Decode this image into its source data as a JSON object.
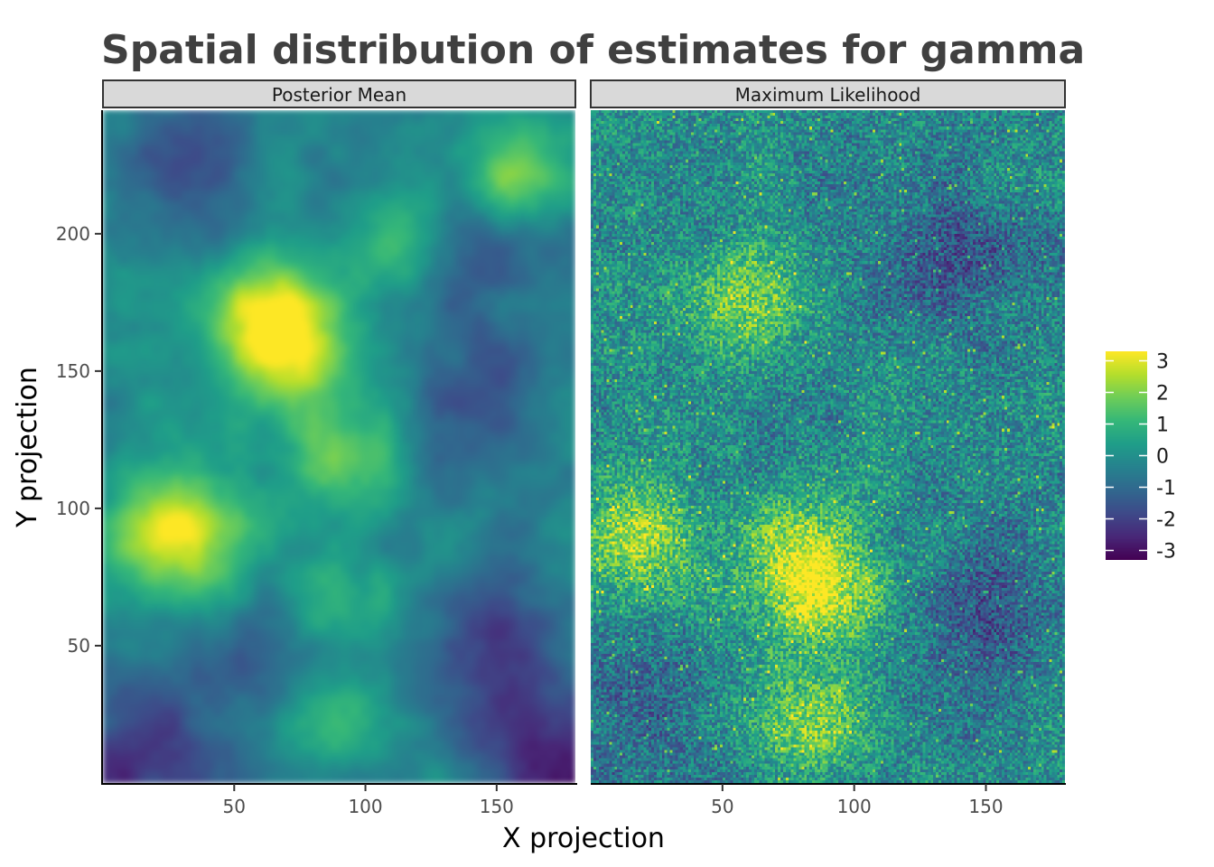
{
  "chart_data": {
    "type": "heatmap",
    "title": "Spatial distribution of estimates for gamma",
    "xlabel": "X projection",
    "ylabel": "Y projection",
    "xlim": [
      0,
      180
    ],
    "ylim": [
      0,
      245
    ],
    "x_ticks": [
      50,
      100,
      150
    ],
    "y_ticks": [
      50,
      100,
      150,
      200
    ],
    "grid": false,
    "legend": {
      "placement": "right",
      "colormap": "viridis",
      "range": [
        -3.3,
        3.3
      ],
      "ticks": [
        3,
        2,
        1,
        0,
        -1,
        -2,
        -3
      ]
    },
    "panels": [
      {
        "name": "Posterior Mean",
        "description_values": "smooth field of estimates",
        "hotspots": [
          {
            "x": 72,
            "y": 158,
            "value": 2.6
          },
          {
            "x": 62,
            "y": 170,
            "value": 2.2
          },
          {
            "x": 20,
            "y": 92,
            "value": 2.3
          },
          {
            "x": 40,
            "y": 92,
            "value": 1.9
          },
          {
            "x": 88,
            "y": 120,
            "value": 1.8
          },
          {
            "x": 155,
            "y": 222,
            "value": 2.0
          },
          {
            "x": 115,
            "y": 195,
            "value": 1.8
          },
          {
            "x": 85,
            "y": 65,
            "value": 1.2
          },
          {
            "x": 88,
            "y": 22,
            "value": 1.0
          }
        ],
        "coldspots": [
          {
            "x": 15,
            "y": 12,
            "value": -2.4
          },
          {
            "x": 175,
            "y": 5,
            "value": -2.9
          },
          {
            "x": 150,
            "y": 50,
            "value": -2.2
          },
          {
            "x": 140,
            "y": 140,
            "value": -1.6
          },
          {
            "x": 140,
            "y": 195,
            "value": -1.9
          },
          {
            "x": 30,
            "y": 230,
            "value": -1.7
          },
          {
            "x": 60,
            "y": 45,
            "value": -1.6
          }
        ]
      },
      {
        "name": "Maximum Likelihood",
        "description_values": "noisy field of estimates",
        "hotspots": [
          {
            "x": 18,
            "y": 90,
            "value": 3.2
          },
          {
            "x": 88,
            "y": 68,
            "value": 2.8
          },
          {
            "x": 78,
            "y": 85,
            "value": 2.6
          },
          {
            "x": 60,
            "y": 175,
            "value": 2.4
          },
          {
            "x": 85,
            "y": 20,
            "value": 2.2
          }
        ],
        "coldspots": [
          {
            "x": 150,
            "y": 60,
            "value": -2.0
          },
          {
            "x": 140,
            "y": 190,
            "value": -1.8
          },
          {
            "x": 20,
            "y": 30,
            "value": -1.6
          }
        ]
      }
    ]
  }
}
